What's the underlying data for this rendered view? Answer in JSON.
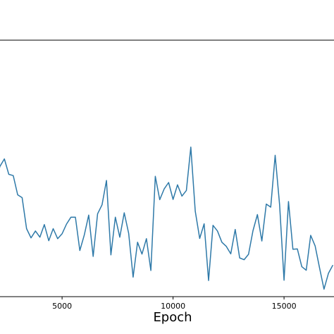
{
  "chart_data": {
    "type": "line",
    "title": "",
    "xlabel": "Epoch",
    "ylabel": "",
    "xlim": [
      2000,
      17300
    ],
    "ylim": [
      0,
      1
    ],
    "grid": false,
    "x_ticks": [
      5000,
      10000,
      15000
    ],
    "x_tick_labels": [
      "5000",
      "10000",
      "15000"
    ],
    "series": [
      {
        "color": "#2e79a8",
        "x": [
          2000,
          2200,
          2400,
          2600,
          2800,
          3000,
          3200,
          3400,
          3600,
          3800,
          4000,
          4200,
          4400,
          4600,
          4800,
          5000,
          5200,
          5400,
          5600,
          5800,
          6000,
          6200,
          6400,
          6600,
          6800,
          7000,
          7200,
          7400,
          7600,
          7800,
          8000,
          8200,
          8400,
          8600,
          8800,
          9000,
          9200,
          9400,
          9600,
          9800,
          10000,
          10200,
          10400,
          10600,
          10800,
          11000,
          11200,
          11400,
          11600,
          11800,
          12000,
          12200,
          12400,
          12600,
          12800,
          13000,
          13200,
          13400,
          13600,
          13800,
          14000,
          14200,
          14400,
          14600,
          14800,
          15000,
          15200,
          15400,
          15600,
          15800,
          16000,
          16200,
          16400,
          16600,
          16800,
          17000,
          17200
        ],
        "y": [
          0.445,
          0.508,
          0.537,
          0.477,
          0.472,
          0.397,
          0.386,
          0.265,
          0.229,
          0.256,
          0.232,
          0.281,
          0.218,
          0.265,
          0.226,
          0.245,
          0.283,
          0.31,
          0.31,
          0.18,
          0.24,
          0.318,
          0.157,
          0.323,
          0.358,
          0.453,
          0.163,
          0.31,
          0.232,
          0.327,
          0.247,
          0.076,
          0.212,
          0.166,
          0.226,
          0.102,
          0.469,
          0.378,
          0.42,
          0.445,
          0.379,
          0.436,
          0.392,
          0.414,
          0.583,
          0.333,
          0.227,
          0.284,
          0.063,
          0.278,
          0.256,
          0.212,
          0.196,
          0.167,
          0.262,
          0.151,
          0.144,
          0.165,
          0.257,
          0.32,
          0.217,
          0.361,
          0.349,
          0.551,
          0.358,
          0.064,
          0.371,
          0.185,
          0.186,
          0.117,
          0.103,
          0.239,
          0.198,
          0.112,
          0.029,
          0.091,
          0.123
        ]
      }
    ]
  }
}
